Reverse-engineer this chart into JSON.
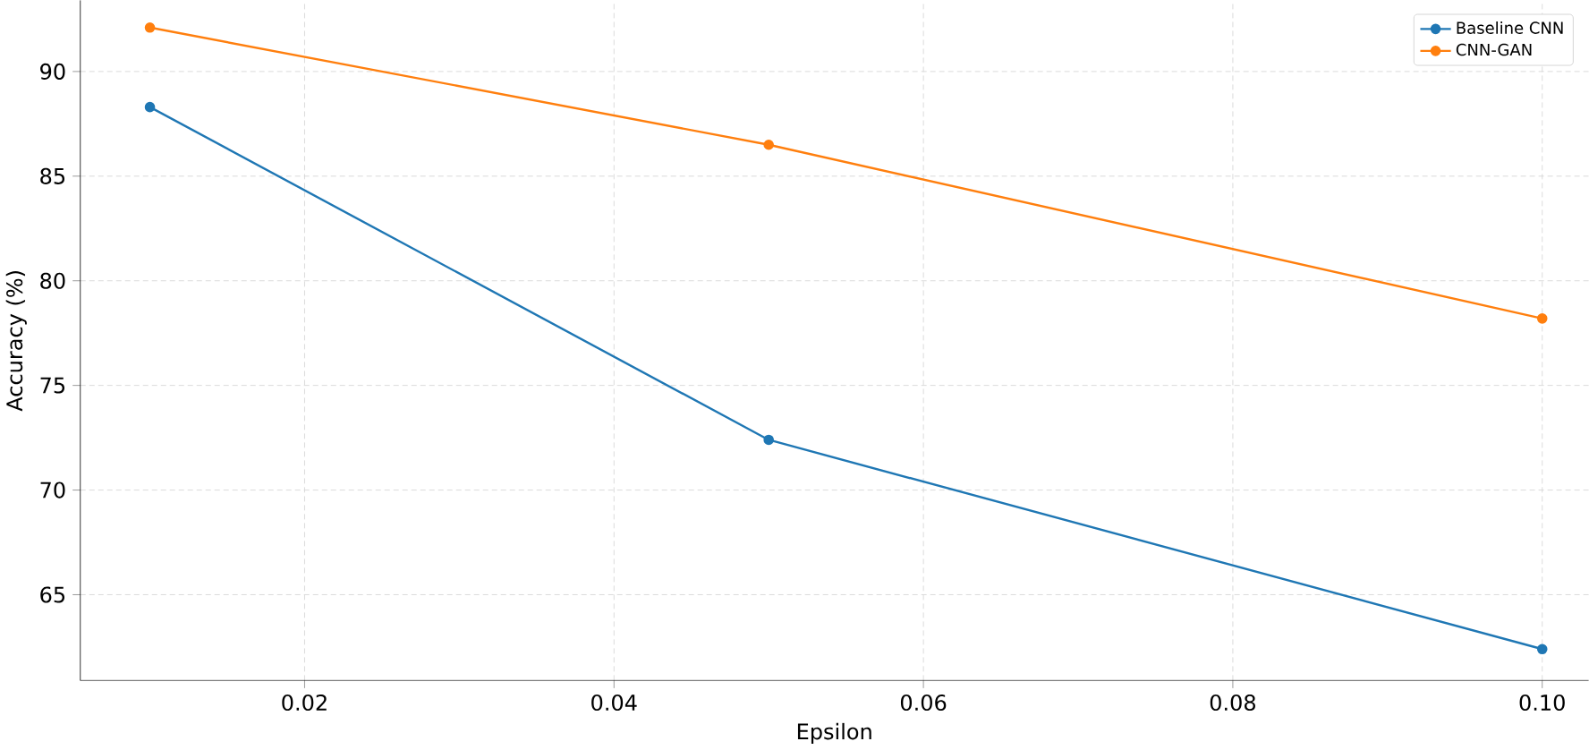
{
  "chart_data": {
    "type": "line",
    "xlabel": "Epsilon",
    "ylabel": "Accuracy (%)",
    "x": [
      0.01,
      0.05,
      0.1
    ],
    "series": [
      {
        "name": "Baseline CNN",
        "color": "#1f77b4",
        "values": [
          88.3,
          72.4,
          62.4
        ]
      },
      {
        "name": "CNN-GAN",
        "color": "#ff7f0e",
        "values": [
          92.1,
          86.5,
          78.2
        ]
      }
    ],
    "xlim": [
      0.0055,
      0.103
    ],
    "ylim": [
      60.9,
      93.4
    ],
    "xticks": [
      {
        "value": 0.02,
        "label": "0.02"
      },
      {
        "value": 0.04,
        "label": "0.04"
      },
      {
        "value": 0.06,
        "label": "0.06"
      },
      {
        "value": 0.08,
        "label": "0.08"
      },
      {
        "value": 0.1,
        "label": "0.10"
      }
    ],
    "yticks": [
      65,
      70,
      75,
      80,
      85,
      90
    ],
    "grid": true,
    "legend": "top right",
    "marker": "circle",
    "line_style": "solid"
  }
}
